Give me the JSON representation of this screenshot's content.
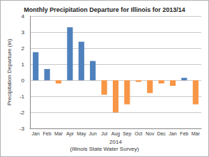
{
  "chart_data": {
    "type": "bar",
    "title": "Monthly Precipitation Departure for Illinois for 2013/14",
    "ylabel": "Precipitation Departure (in)",
    "xlabel": "2014",
    "annotations": [
      "(Illinois State Water Survey)"
    ],
    "categories": [
      "Jan",
      "Feb",
      "Mar",
      "Apr",
      "May",
      "Jun",
      "Jul",
      "Aug",
      "Sep",
      "Oct",
      "Nov",
      "Dec",
      "Jan",
      "Feb",
      "Mar"
    ],
    "values": [
      1.75,
      0.7,
      -0.2,
      3.3,
      2.4,
      1.2,
      -0.9,
      -2.0,
      -1.5,
      -0.1,
      -0.8,
      -0.2,
      -0.35,
      0.15,
      -1.5
    ],
    "colors": [
      "#4f81bd",
      "#4f81bd",
      "#f79646",
      "#4f81bd",
      "#4f81bd",
      "#4f81bd",
      "#f79646",
      "#f79646",
      "#f79646",
      "#f79646",
      "#f79646",
      "#f79646",
      "#f79646",
      "#4f81bd",
      "#f79646"
    ],
    "ylim": [
      -3,
      4
    ],
    "yticks": [
      -3,
      -2,
      -1,
      0,
      1,
      2,
      3,
      4
    ],
    "grid": true
  }
}
